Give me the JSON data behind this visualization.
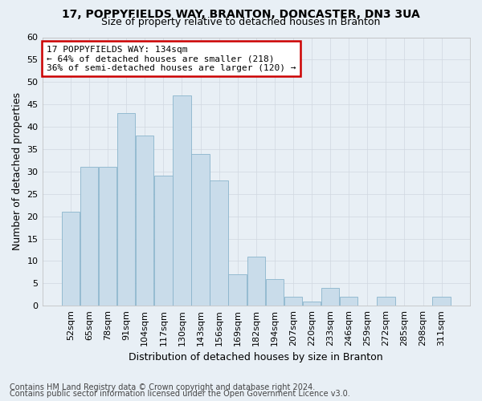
{
  "title1": "17, POPPYFIELDS WAY, BRANTON, DONCASTER, DN3 3UA",
  "title2": "Size of property relative to detached houses in Branton",
  "xlabel": "Distribution of detached houses by size in Branton",
  "ylabel": "Number of detached properties",
  "categories": [
    "52sqm",
    "65sqm",
    "78sqm",
    "91sqm",
    "104sqm",
    "117sqm",
    "130sqm",
    "143sqm",
    "156sqm",
    "169sqm",
    "182sqm",
    "194sqm",
    "207sqm",
    "220sqm",
    "233sqm",
    "246sqm",
    "259sqm",
    "272sqm",
    "285sqm",
    "298sqm",
    "311sqm"
  ],
  "values": [
    21,
    31,
    31,
    43,
    38,
    29,
    47,
    34,
    28,
    7,
    11,
    6,
    2,
    1,
    4,
    2,
    0,
    2,
    0,
    0,
    2
  ],
  "bar_color": "#c9dcea",
  "bar_edge_color": "#8ab4cc",
  "annotation_text": "17 POPPYFIELDS WAY: 134sqm\n← 64% of detached houses are smaller (218)\n36% of semi-detached houses are larger (120) →",
  "annotation_box_color": "#ffffff",
  "annotation_box_edge_color": "#cc0000",
  "ylim": [
    0,
    60
  ],
  "yticks": [
    0,
    5,
    10,
    15,
    20,
    25,
    30,
    35,
    40,
    45,
    50,
    55,
    60
  ],
  "grid_color": "#d0d8e0",
  "background_color": "#e8eff5",
  "footer1": "Contains HM Land Registry data © Crown copyright and database right 2024.",
  "footer2": "Contains public sector information licensed under the Open Government Licence v3.0.",
  "title_fontsize": 10,
  "subtitle_fontsize": 9,
  "axis_label_fontsize": 9,
  "tick_fontsize": 8,
  "annotation_fontsize": 8,
  "footer_fontsize": 7
}
